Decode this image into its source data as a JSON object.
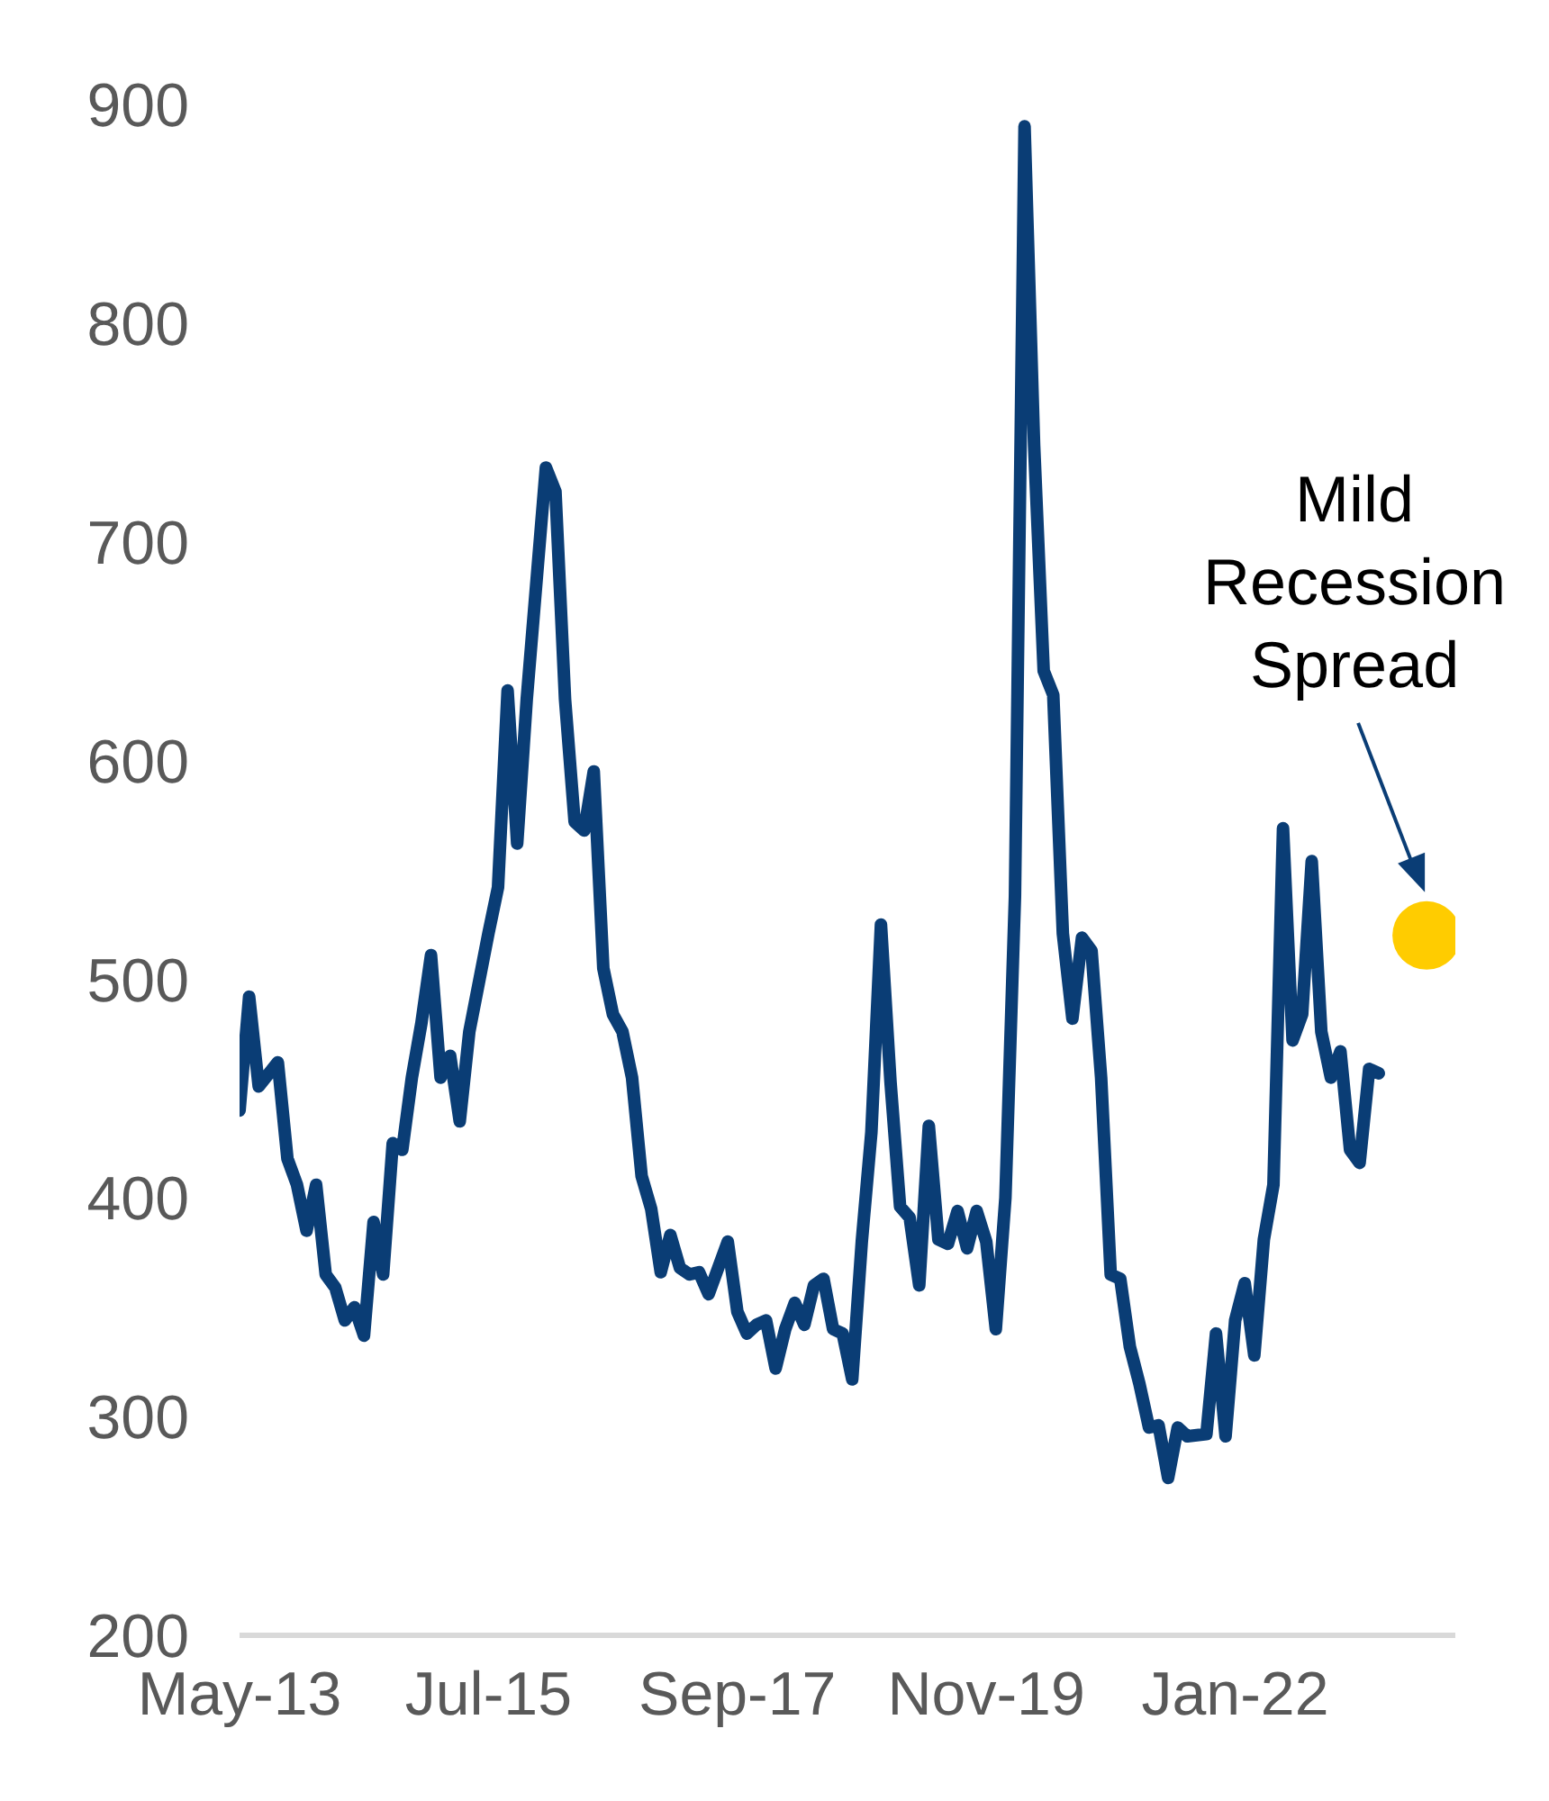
{
  "chart_data": {
    "type": "line",
    "xlim": [
      "2013-05",
      "2023-12"
    ],
    "xticks": [
      {
        "value": "2013-05",
        "label": "May-13"
      },
      {
        "value": "2015-07",
        "label": "Jul-15"
      },
      {
        "value": "2017-09",
        "label": "Sep-17"
      },
      {
        "value": "2019-11",
        "label": "Nov-19"
      },
      {
        "value": "2022-01",
        "label": "Jan-22"
      }
    ],
    "ylim": [
      200,
      900
    ],
    "yticks": [
      200,
      300,
      400,
      500,
      600,
      700,
      800,
      900
    ],
    "grid": false,
    "legend": false,
    "annotations": [
      "Mild Recession Spread"
    ],
    "series": [
      {
        "color": "#0a3d75",
        "marker": "none",
        "x": [
          "2013-05",
          "2013-06",
          "2013-07",
          "2013-09",
          "2013-10",
          "2013-11",
          "2013-12",
          "2014-01",
          "2014-02",
          "2014-03",
          "2014-04",
          "2014-05",
          "2014-06",
          "2014-07",
          "2014-08",
          "2014-09",
          "2014-10",
          "2014-11",
          "2014-12",
          "2015-01",
          "2015-02",
          "2015-03",
          "2015-04",
          "2015-05",
          "2015-07",
          "2015-08",
          "2015-09",
          "2015-10",
          "2015-11",
          "2016-01",
          "2016-02",
          "2016-03",
          "2016-04",
          "2016-05",
          "2016-06",
          "2016-07",
          "2016-08",
          "2016-09",
          "2016-10",
          "2016-11",
          "2016-12",
          "2017-01",
          "2017-02",
          "2017-03",
          "2017-04",
          "2017-05",
          "2017-06",
          "2017-08",
          "2017-09",
          "2017-10",
          "2017-11",
          "2017-12",
          "2018-01",
          "2018-02",
          "2018-03",
          "2018-04",
          "2018-05",
          "2018-06",
          "2018-07",
          "2018-08",
          "2018-09",
          "2018-10",
          "2018-11",
          "2018-12",
          "2019-01",
          "2019-02",
          "2019-03",
          "2019-04",
          "2019-05",
          "2019-06",
          "2019-07",
          "2019-08",
          "2019-09",
          "2019-10",
          "2019-11",
          "2019-12",
          "2020-01",
          "2020-02",
          "2020-03",
          "2020-04",
          "2020-05",
          "2020-06",
          "2020-07",
          "2020-08",
          "2020-09",
          "2020-10",
          "2020-11",
          "2020-12",
          "2021-01",
          "2021-02",
          "2021-03",
          "2021-04",
          "2021-05",
          "2021-06",
          "2021-07",
          "2021-08",
          "2021-10",
          "2021-11",
          "2021-12",
          "2022-01",
          "2022-02",
          "2022-03",
          "2022-04",
          "2022-05",
          "2022-06",
          "2022-07",
          "2022-08",
          "2022-09",
          "2022-10",
          "2022-11",
          "2022-12",
          "2023-01",
          "2023-02",
          "2023-03",
          "2023-04"
        ],
        "values": [
          440,
          492,
          451,
          462,
          418,
          406,
          385,
          406,
          365,
          359,
          344,
          350,
          337,
          389,
          365,
          425,
          422,
          455,
          480,
          511,
          455,
          465,
          435,
          476,
          521,
          542,
          632,
          562,
          628,
          734,
          723,
          628,
          572,
          568,
          595,
          505,
          484,
          476,
          455,
          410,
          395,
          366,
          383,
          368,
          365,
          366,
          356,
          380,
          348,
          338,
          342,
          344,
          322,
          340,
          352,
          342,
          360,
          363,
          340,
          338,
          317,
          380,
          430,
          525,
          453,
          396,
          391,
          360,
          433,
          381,
          379,
          394,
          377,
          394,
          380,
          340,
          400,
          538,
          890,
          744,
          641,
          630,
          521,
          482,
          519,
          513,
          455,
          365,
          363,
          332,
          315,
          295,
          296,
          272,
          295,
          291,
          292,
          338,
          291,
          344,
          361,
          328,
          381,
          406,
          569,
          472,
          484,
          554,
          476,
          455,
          467,
          422,
          416,
          459,
          457
        ]
      },
      {
        "type": "scatter",
        "color": "#ffcc00",
        "marker": "circle",
        "x": [
          "2023-09"
        ],
        "values": [
          520
        ]
      }
    ]
  }
}
